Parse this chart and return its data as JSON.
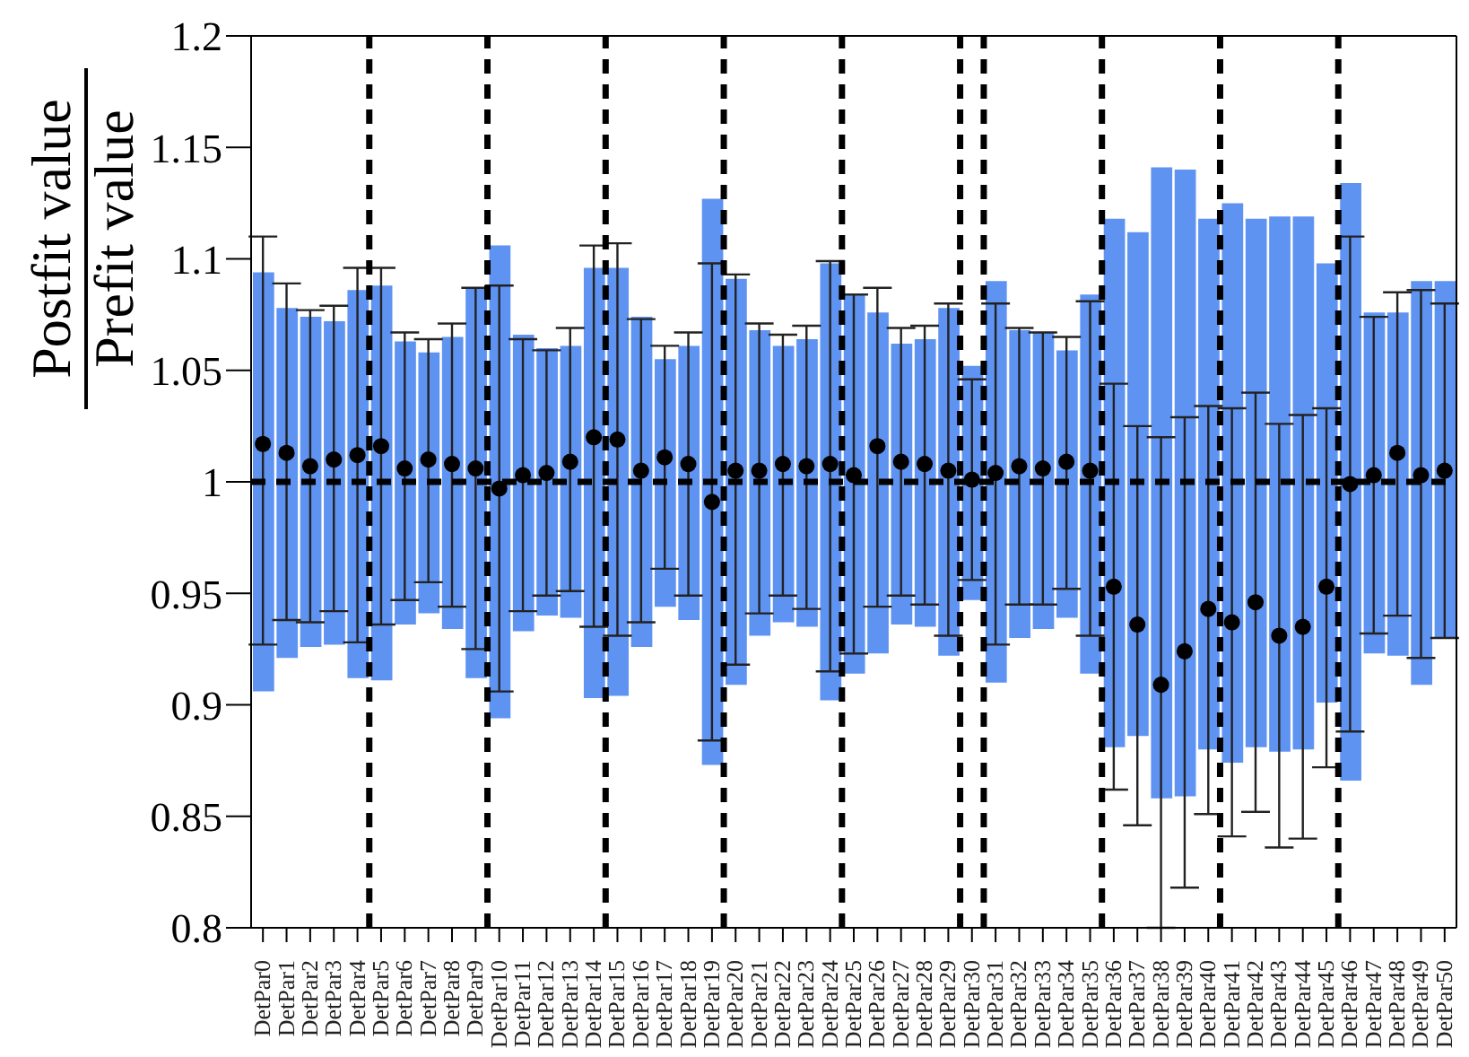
{
  "chart_data": {
    "type": "bar",
    "ylabel": "Postfit value\nPrefit value",
    "categories": [
      "DetPar0",
      "DetPar1",
      "DetPar2",
      "DetPar3",
      "DetPar4",
      "DetPar5",
      "DetPar6",
      "DetPar7",
      "DetPar8",
      "DetPar9",
      "DetPar10",
      "DetPar11",
      "DetPar12",
      "DetPar13",
      "DetPar14",
      "DetPar15",
      "DetPar16",
      "DetPar17",
      "DetPar18",
      "DetPar19",
      "DetPar20",
      "DetPar21",
      "DetPar22",
      "DetPar23",
      "DetPar24",
      "DetPar25",
      "DetPar26",
      "DetPar27",
      "DetPar28",
      "DetPar29",
      "DetPar30",
      "DetPar31",
      "DetPar32",
      "DetPar33",
      "DetPar34",
      "DetPar35",
      "DetPar36",
      "DetPar37",
      "DetPar38",
      "DetPar39",
      "DetPar40",
      "DetPar41",
      "DetPar42",
      "DetPar43",
      "DetPar44",
      "DetPar45",
      "DetPar46",
      "DetPar47",
      "DetPar48",
      "DetPar49",
      "DetPar50"
    ],
    "series": [
      {
        "color": "#5f93f2",
        "base": [
          0.906,
          0.921,
          0.926,
          0.927,
          0.912,
          0.911,
          0.936,
          0.941,
          0.934,
          0.912,
          0.894,
          0.933,
          0.94,
          0.939,
          0.903,
          0.904,
          0.926,
          0.944,
          0.938,
          0.873,
          0.909,
          0.931,
          0.937,
          0.935,
          0.902,
          0.914,
          0.923,
          0.936,
          0.935,
          0.922,
          0.947,
          0.91,
          0.93,
          0.934,
          0.939,
          0.914,
          0.881,
          0.886,
          0.858,
          0.859,
          0.88,
          0.874,
          0.881,
          0.879,
          0.88,
          0.901,
          0.866,
          0.923,
          0.922,
          0.909,
          0.93
        ],
        "values": [
          0.188,
          0.157,
          0.148,
          0.145,
          0.174,
          0.177,
          0.127,
          0.117,
          0.131,
          0.175,
          0.212,
          0.133,
          0.12,
          0.122,
          0.193,
          0.192,
          0.148,
          0.111,
          0.123,
          0.254,
          0.182,
          0.137,
          0.124,
          0.129,
          0.196,
          0.17,
          0.153,
          0.126,
          0.129,
          0.156,
          0.105,
          0.18,
          0.138,
          0.133,
          0.12,
          0.17,
          0.237,
          0.226,
          0.283,
          0.281,
          0.238,
          0.251,
          0.237,
          0.24,
          0.239,
          0.197,
          0.268,
          0.153,
          0.154,
          0.181,
          0.16
        ]
      },
      {
        "type": "scatter",
        "color": "#000000",
        "marker": "circle",
        "values": [
          1.017,
          1.013,
          1.007,
          1.01,
          1.012,
          1.016,
          1.006,
          1.01,
          1.008,
          1.006,
          0.997,
          1.003,
          1.004,
          1.009,
          1.02,
          1.019,
          1.005,
          1.011,
          1.008,
          0.991,
          1.005,
          1.005,
          1.008,
          1.007,
          1.008,
          1.003,
          1.016,
          1.009,
          1.008,
          1.005,
          1.001,
          1.004,
          1.007,
          1.006,
          1.009,
          1.005,
          0.953,
          0.936,
          0.909,
          0.924,
          0.943,
          0.937,
          0.946,
          0.931,
          0.935,
          0.953,
          0.999,
          1.003,
          1.013,
          1.003,
          1.005
        ],
        "errors": [
          [
            0.927,
            1.11
          ],
          [
            0.938,
            1.089
          ],
          [
            0.937,
            1.077
          ],
          [
            0.942,
            1.079
          ],
          [
            0.928,
            1.096
          ],
          [
            0.936,
            1.096
          ],
          [
            0.947,
            1.067
          ],
          [
            0.955,
            1.064
          ],
          [
            0.944,
            1.071
          ],
          [
            0.925,
            1.087
          ],
          [
            0.906,
            1.088
          ],
          [
            0.942,
            1.064
          ],
          [
            0.949,
            1.059
          ],
          [
            0.951,
            1.069
          ],
          [
            0.935,
            1.106
          ],
          [
            0.931,
            1.107
          ],
          [
            0.937,
            1.073
          ],
          [
            0.961,
            1.061
          ],
          [
            0.949,
            1.067
          ],
          [
            0.884,
            1.098
          ],
          [
            0.918,
            1.093
          ],
          [
            0.941,
            1.071
          ],
          [
            0.949,
            1.066
          ],
          [
            0.943,
            1.07
          ],
          [
            0.915,
            1.099
          ],
          [
            0.923,
            1.084
          ],
          [
            0.944,
            1.087
          ],
          [
            0.949,
            1.069
          ],
          [
            0.945,
            1.07
          ],
          [
            0.931,
            1.08
          ],
          [
            0.956,
            1.046
          ],
          [
            0.927,
            1.08
          ],
          [
            0.945,
            1.069
          ],
          [
            0.945,
            1.067
          ],
          [
            0.952,
            1.065
          ],
          [
            0.931,
            1.081
          ],
          [
            0.862,
            1.044
          ],
          [
            0.846,
            1.025
          ],
          [
            0.8,
            1.02
          ],
          [
            0.818,
            1.029
          ],
          [
            0.851,
            1.034
          ],
          [
            0.841,
            1.033
          ],
          [
            0.852,
            1.04
          ],
          [
            0.836,
            1.026
          ],
          [
            0.84,
            1.03
          ],
          [
            0.872,
            1.033
          ],
          [
            0.888,
            1.11
          ],
          [
            0.932,
            1.074
          ],
          [
            0.94,
            1.085
          ],
          [
            0.921,
            1.086
          ],
          [
            0.93,
            1.08
          ]
        ]
      }
    ],
    "ylim": [
      0.8,
      1.2
    ],
    "yticks": [
      0.8,
      0.85,
      0.9,
      0.95,
      1,
      1.05,
      1.1,
      1.15,
      1.2
    ],
    "grid": false,
    "legend": false,
    "ref_lines": [
      {
        "axis": "y",
        "value": 1,
        "line_style": "dashed"
      }
    ]
  }
}
